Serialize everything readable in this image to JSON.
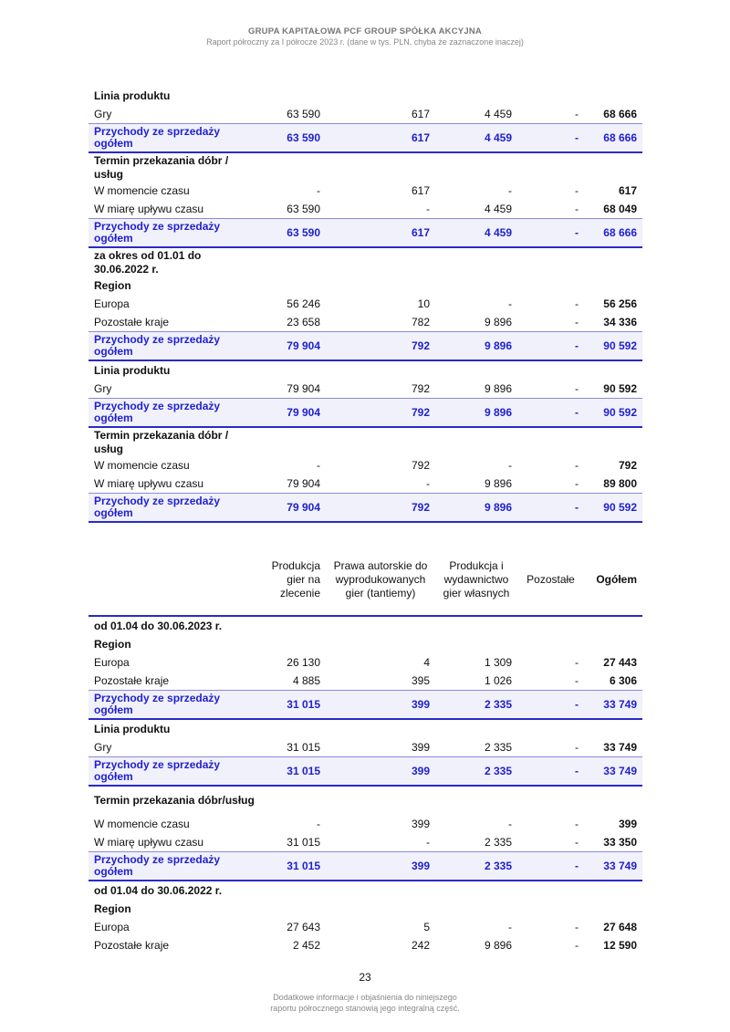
{
  "header": {
    "title": "GRUPA KAPITAŁOWA PCF GROUP SPÓŁKA AKCYJNA",
    "subtitle": "Raport półroczny za I półrocze 2023 r. (dane w tys. PLN, chyba że zaznaczone inaczej)"
  },
  "table1": {
    "rows": [
      {
        "type": "head",
        "label": "Linia produktu"
      },
      {
        "type": "row",
        "label": "Gry",
        "values": [
          "63 590",
          "617",
          "4 459",
          "-",
          "68 666"
        ]
      },
      {
        "type": "total",
        "label": "Przychody ze sprzedaży ogółem",
        "values": [
          "63 590",
          "617",
          "4 459",
          "-",
          "68 666"
        ]
      },
      {
        "type": "head2",
        "label": "Termin przekazania dóbr / usług"
      },
      {
        "type": "row",
        "label": "W momencie czasu",
        "values": [
          "-",
          "617",
          "-",
          "-",
          "617"
        ]
      },
      {
        "type": "row",
        "label": "W miarę upływu czasu",
        "values": [
          "63 590",
          "-",
          "4 459",
          "-",
          "68 049"
        ]
      },
      {
        "type": "total",
        "label": "Przychody ze sprzedaży ogółem",
        "values": [
          "63 590",
          "617",
          "4 459",
          "-",
          "68 666"
        ]
      },
      {
        "type": "head2",
        "label": "za okres od 01.01 do 30.06.2022 r."
      },
      {
        "type": "head",
        "label": "Region"
      },
      {
        "type": "row",
        "label": "Europa",
        "values": [
          "56 246",
          "10",
          "-",
          "-",
          "56 256"
        ]
      },
      {
        "type": "row",
        "label": "Pozostałe kraje",
        "values": [
          "23 658",
          "782",
          "9 896",
          "-",
          "34 336"
        ]
      },
      {
        "type": "total",
        "label": "Przychody ze sprzedaży ogółem",
        "values": [
          "79 904",
          "792",
          "9 896",
          "-",
          "90 592"
        ]
      },
      {
        "type": "head",
        "label": "Linia produktu"
      },
      {
        "type": "row",
        "label": "Gry",
        "values": [
          "79 904",
          "792",
          "9 896",
          "-",
          "90 592"
        ]
      },
      {
        "type": "total",
        "label": "Przychody ze sprzedaży ogółem",
        "values": [
          "79 904",
          "792",
          "9 896",
          "-",
          "90 592"
        ]
      },
      {
        "type": "head2",
        "label": "Termin przekazania dóbr / usług"
      },
      {
        "type": "row",
        "label": "W momencie czasu",
        "values": [
          "-",
          "792",
          "-",
          "-",
          "792"
        ]
      },
      {
        "type": "row",
        "label": "W miarę upływu czasu",
        "values": [
          "79 904",
          "-",
          "9 896",
          "-",
          "89 800"
        ]
      },
      {
        "type": "total",
        "label": "Przychody ze sprzedaży ogółem",
        "values": [
          "79 904",
          "792",
          "9 896",
          "-",
          "90 592"
        ]
      }
    ]
  },
  "table2": {
    "columns": [
      "Produkcja gier na zlecenie",
      "Prawa autorskie do wyprodukowanych gier (tantiemy)",
      "Produkcja i wydawnictwo gier własnych",
      "Pozostałe",
      "Ogółem"
    ],
    "rows": [
      {
        "type": "head",
        "label": "od 01.04 do 30.06.2023 r."
      },
      {
        "type": "head",
        "label": "Region"
      },
      {
        "type": "row",
        "label": "Europa",
        "values": [
          "26 130",
          "4",
          "1 309",
          "-",
          "27 443"
        ]
      },
      {
        "type": "row",
        "label": "Pozostałe kraje",
        "values": [
          "4 885",
          "395",
          "1 026",
          "-",
          "6 306"
        ]
      },
      {
        "type": "total",
        "label": "Przychody ze sprzedaży ogółem",
        "values": [
          "31 015",
          "399",
          "2 335",
          "-",
          "33 749"
        ]
      },
      {
        "type": "head",
        "label": "Linia produktu"
      },
      {
        "type": "row",
        "label": "Gry",
        "values": [
          "31 015",
          "399",
          "2 335",
          "-",
          "33 749"
        ]
      },
      {
        "type": "total",
        "label": "Przychody ze sprzedaży ogółem",
        "values": [
          "31 015",
          "399",
          "2 335",
          "-",
          "33 749"
        ]
      },
      {
        "type": "head2",
        "label": "Termin przekazania dóbr/usług"
      },
      {
        "type": "row",
        "label": "W momencie czasu",
        "values": [
          "-",
          "399",
          "-",
          "-",
          "399"
        ]
      },
      {
        "type": "row",
        "label": "W miarę upływu czasu",
        "values": [
          "31 015",
          "-",
          "2 335",
          "-",
          "33 350"
        ]
      },
      {
        "type": "total",
        "label": "Przychody ze sprzedaży ogółem",
        "values": [
          "31 015",
          "399",
          "2 335",
          "-",
          "33 749"
        ]
      },
      {
        "type": "head",
        "label": "od 01.04 do 30.06.2022 r."
      },
      {
        "type": "head",
        "label": "Region"
      },
      {
        "type": "row",
        "label": "Europa",
        "values": [
          "27 643",
          "5",
          "-",
          "-",
          "27 648"
        ]
      },
      {
        "type": "row",
        "label": "Pozostałe kraje",
        "values": [
          "2 452",
          "242",
          "9 896",
          "-",
          "12 590"
        ]
      }
    ]
  },
  "footer": {
    "page_number": "23",
    "note_line1": "Dodatkowe informacje i objaśnienia do niniejszego",
    "note_line2": "raportu półrocznego stanowią jego integralną część."
  },
  "colors": {
    "accent": "#1f1fd0",
    "total_bg": "#f1f1fb"
  }
}
